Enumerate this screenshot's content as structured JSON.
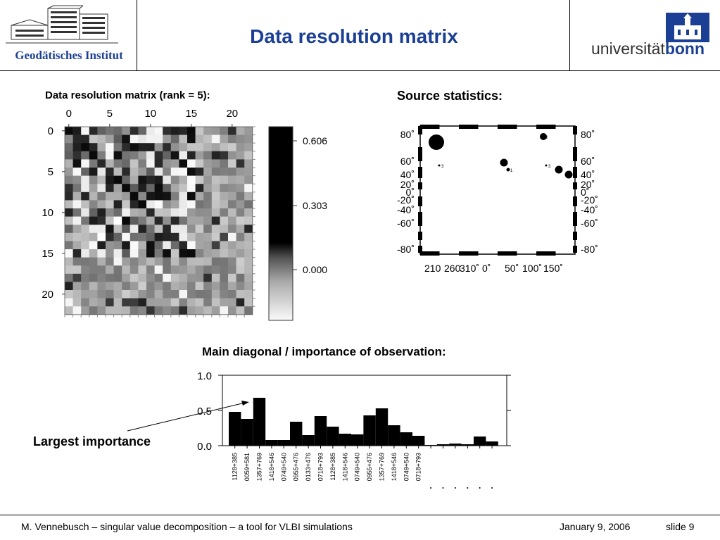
{
  "header": {
    "title": "Data resolution matrix",
    "left_logo_text": "Geodätisches Institut",
    "right_logo_text_light": "universität",
    "right_logo_text_bold": "bonn"
  },
  "colors": {
    "title_blue": "#1b3f94",
    "uni_blue": "#1b3f94"
  },
  "matrix_panel": {
    "title": "Data resolution matrix (rank =  5):",
    "x_ticks": [
      "0",
      "5",
      "10",
      "15",
      "20"
    ],
    "y_ticks": [
      "0",
      "5",
      "10",
      "15",
      "20"
    ],
    "colorbar_ticks": [
      "0.606",
      "0.303",
      "0.000"
    ]
  },
  "map_panel": {
    "title": "Source statistics:",
    "lat_labels_left": [
      "80˚",
      "60˚",
      "40˚",
      "20˚",
      "0˚",
      "-20˚",
      "-40˚",
      "-60˚",
      "-80˚"
    ],
    "lat_labels_right": [
      "80˚",
      "60˚",
      "40˚",
      "20˚",
      "0˚",
      "-20˚",
      "-40˚",
      "-60˚",
      "-80˚"
    ],
    "lon_labels": [
      "210",
      "260",
      "310˚",
      "0˚",
      "50˚",
      "100˚",
      "150˚"
    ],
    "markers": [
      {
        "label": "",
        "size": "large"
      },
      {
        "label": "3",
        "size": "tiny"
      },
      {
        "label": "",
        "size": "medium"
      },
      {
        "label": "1",
        "size": "tiny"
      },
      {
        "label": "3",
        "size": "tiny"
      },
      {
        "label": "2",
        "size": "small"
      },
      {
        "label": "",
        "size": "medium"
      },
      {
        "label": "",
        "size": "medium"
      }
    ]
  },
  "bar_panel": {
    "title": "Main diagonal / importance of observation:",
    "annotation": "Largest importance",
    "y_ticks": [
      "1.0",
      "0.5",
      "0.0"
    ]
  },
  "chart_data": [
    {
      "type": "heatmap",
      "title": "Data resolution matrix (rank =  5):",
      "rows": 23,
      "cols": 23,
      "x_ticks": [
        0,
        5,
        10,
        15,
        20
      ],
      "y_ticks": [
        0,
        5,
        10,
        15,
        20
      ],
      "colorbar": {
        "min": 0.0,
        "mid": 0.303,
        "max": 0.606,
        "ticks": [
          0.606,
          0.303,
          0.0
        ]
      }
    },
    {
      "type": "bar",
      "title": "Main diagonal / importance of observation:",
      "ylim": [
        0,
        1.0
      ],
      "y_ticks": [
        0.0,
        0.5,
        1.0
      ],
      "categories": [
        "1128+385",
        "0059+581",
        "1357+769",
        "1418+546",
        "0749+540",
        "0955+476",
        "0133+476",
        "0718+793",
        "1128+385",
        "1418+546",
        "0749+540",
        "0955+476",
        "1357+769",
        "1418+546",
        "0749+540",
        "0718+793",
        "",
        "",
        "",
        "",
        "",
        ""
      ],
      "values": [
        0.48,
        0.38,
        0.68,
        0.08,
        0.08,
        0.34,
        0.15,
        0.42,
        0.27,
        0.17,
        0.16,
        0.43,
        0.53,
        0.29,
        0.19,
        0.14,
        0.01,
        0.02,
        0.03,
        0.02,
        0.13,
        0.06
      ]
    }
  ],
  "footer": {
    "left": "M. Vennebusch – singular value decomposition – a tool for VLBI simulations",
    "date": "January 9, 2006",
    "slide": "slide 9"
  }
}
